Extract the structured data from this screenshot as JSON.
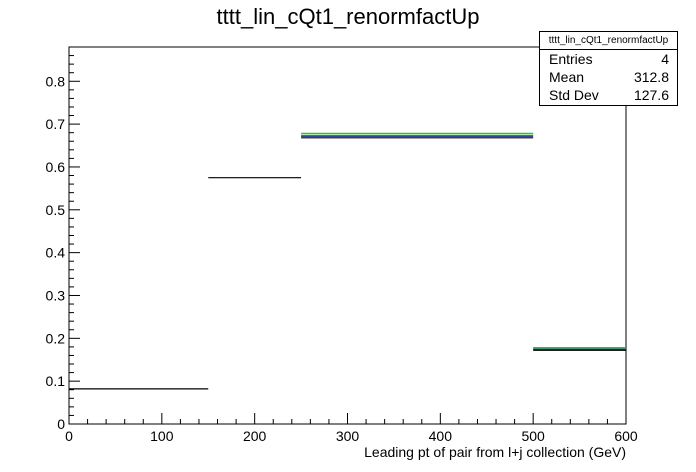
{
  "chart_data": {
    "type": "histogram",
    "title": "tttt_lin_cQt1_renormfactUp",
    "xlabel": "Leading pt of pair from l+j collection (GeV)",
    "ylabel": "",
    "xlim": [
      0,
      600
    ],
    "ylim": [
      0,
      0.88
    ],
    "x_ticks": [
      0,
      100,
      200,
      300,
      400,
      500,
      600
    ],
    "y_ticks": [
      0,
      0.1,
      0.2,
      0.3,
      0.4,
      0.5,
      0.6,
      0.7,
      0.8
    ],
    "bins": [
      {
        "x_low": 0,
        "x_high": 150,
        "value": 0.082
      },
      {
        "x_low": 150,
        "x_high": 250,
        "value": 0.575
      },
      {
        "x_low": 250,
        "x_high": 500,
        "value": 0.668
      },
      {
        "x_low": 500,
        "x_high": 600,
        "value": 0.172
      }
    ],
    "overlays": [
      {
        "color": "#22cc22",
        "bins": [
          {
            "x_low": 250,
            "x_high": 500,
            "value": 0.678
          },
          {
            "x_low": 500,
            "x_high": 600,
            "value": 0.178
          }
        ]
      },
      {
        "color": "#1a2a8a",
        "bins": [
          {
            "x_low": 250,
            "x_high": 500,
            "value": 0.672
          },
          {
            "x_low": 500,
            "x_high": 600,
            "value": 0.174
          }
        ]
      }
    ],
    "stats": {
      "name": "tttt_lin_cQt1_renormfactUp",
      "entries_label": "Entries",
      "entries": "4",
      "mean_label": "Mean",
      "mean": "312.8",
      "stddev_label": "Std Dev",
      "stddev": "127.6"
    },
    "grid": false,
    "legend": "stats box top-right"
  }
}
